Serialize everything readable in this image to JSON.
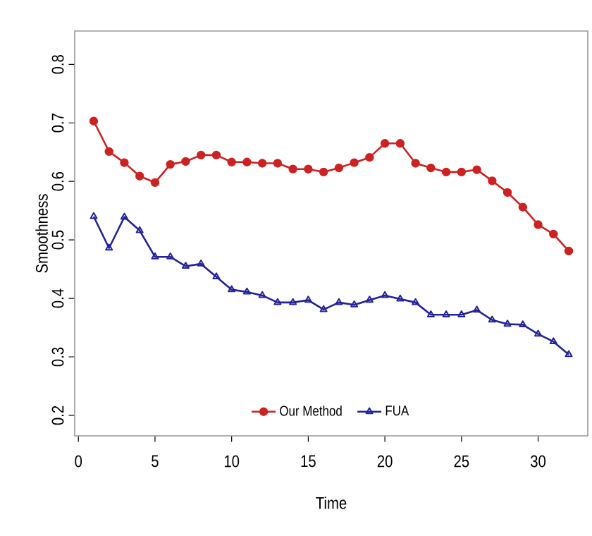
{
  "chart_data": {
    "type": "line",
    "xlabel": "Time",
    "ylabel": "Smoothness",
    "x": [
      1,
      2,
      3,
      4,
      5,
      6,
      7,
      8,
      9,
      10,
      11,
      12,
      13,
      14,
      15,
      16,
      17,
      18,
      19,
      20,
      21,
      22,
      23,
      24,
      25,
      26,
      27,
      28,
      29,
      30,
      31,
      32
    ],
    "series": [
      {
        "name": "Our Method",
        "color": "#cc2222",
        "marker": "circle",
        "values": [
          0.703,
          0.651,
          0.632,
          0.609,
          0.598,
          0.629,
          0.634,
          0.645,
          0.645,
          0.633,
          0.633,
          0.631,
          0.631,
          0.621,
          0.621,
          0.616,
          0.623,
          0.632,
          0.641,
          0.665,
          0.665,
          0.631,
          0.623,
          0.616,
          0.616,
          0.62,
          0.601,
          0.581,
          0.556,
          0.526,
          0.51,
          0.481
        ]
      },
      {
        "name": "FUA",
        "color": "#22229a",
        "marker": "triangle",
        "values": [
          0.54,
          0.486,
          0.539,
          0.516,
          0.471,
          0.471,
          0.455,
          0.459,
          0.437,
          0.415,
          0.411,
          0.405,
          0.393,
          0.393,
          0.397,
          0.381,
          0.393,
          0.389,
          0.397,
          0.405,
          0.399,
          0.393,
          0.372,
          0.372,
          0.372,
          0.38,
          0.363,
          0.356,
          0.355,
          0.339,
          0.326,
          0.304
        ]
      }
    ],
    "xlim": [
      -0.24,
      33.24
    ],
    "ylim": [
      0.165,
      0.857
    ],
    "xticks": [
      0,
      5,
      10,
      15,
      20,
      25,
      30
    ],
    "yticks": [
      0.2,
      0.3,
      0.4,
      0.5,
      0.6,
      0.7,
      0.8
    ],
    "legend": "bottom",
    "grid": false
  }
}
